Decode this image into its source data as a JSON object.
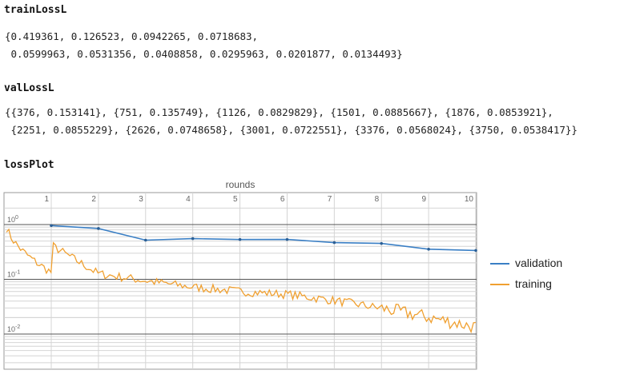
{
  "train": {
    "name": "trainLossL",
    "line1": "{0.419361, 0.126523, 0.0942265, 0.0718683,",
    "line2": " 0.0599963, 0.0531356, 0.0408858, 0.0295963, 0.0201877, 0.0134493}"
  },
  "val": {
    "name": "valLossL",
    "line1": "{{376, 0.153141}, {751, 0.135749}, {1126, 0.0829829}, {1501, 0.0885667}, {1876, 0.0853921},",
    "line2": " {2251, 0.0855229}, {2626, 0.0748658}, {3001, 0.0722551}, {3376, 0.0568024}, {3750, 0.0538417}}"
  },
  "plot": {
    "name": "lossPlot",
    "frame_label": "rounds",
    "round_labels": [
      "1",
      "2",
      "3",
      "4",
      "5",
      "6",
      "7",
      "8",
      "9",
      "10"
    ],
    "ytick_labels": [
      {
        "base": "10",
        "exp": "0"
      },
      {
        "base": "10",
        "exp": "-1"
      },
      {
        "base": "10",
        "exp": "-2"
      }
    ],
    "colors": {
      "validation": "#3a7fc5",
      "training": "#f0a030",
      "grid_major": "#555555",
      "grid_minor": "#d4d4d4",
      "frame": "#9a9a9a"
    }
  },
  "legend": {
    "validation": "validation",
    "training": "training"
  },
  "chart_data": {
    "type": "line",
    "title": "",
    "xlabel": "rounds",
    "ylabel": "",
    "yscale": "log",
    "x_ticks": [
      1,
      2,
      3,
      4,
      5,
      6,
      7,
      8,
      9,
      10
    ],
    "series": [
      {
        "name": "validation",
        "x": [
          1,
          2,
          3,
          4,
          5,
          6,
          7,
          8,
          9,
          10
        ],
        "values": [
          0.153141,
          0.135749,
          0.0829829,
          0.0885667,
          0.0853921,
          0.0855229,
          0.0748658,
          0.0722551,
          0.0568024,
          0.0538417
        ]
      },
      {
        "name": "training",
        "x": [
          1,
          2,
          3,
          4,
          5,
          6,
          7,
          8,
          9,
          10
        ],
        "values": [
          0.419361,
          0.126523,
          0.0942265,
          0.0718683,
          0.0599963,
          0.0531356,
          0.0408858,
          0.0295963,
          0.0201877,
          0.0134493
        ]
      }
    ],
    "legend_position": "right",
    "grid": true
  }
}
